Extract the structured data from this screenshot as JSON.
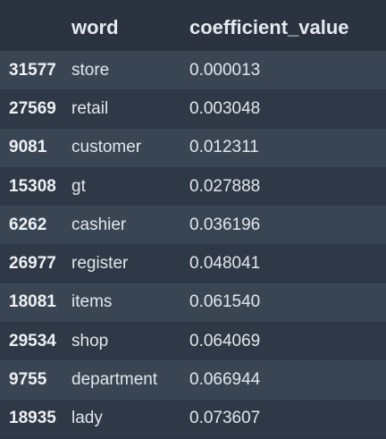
{
  "table": {
    "columns": [
      "",
      "word",
      "coefficient_value"
    ],
    "rows": [
      {
        "index": "31577",
        "word": "store",
        "value": "0.000013"
      },
      {
        "index": "27569",
        "word": "retail",
        "value": "0.003048"
      },
      {
        "index": "9081",
        "word": "customer",
        "value": "0.012311"
      },
      {
        "index": "15308",
        "word": "gt",
        "value": "0.027888"
      },
      {
        "index": "6262",
        "word": "cashier",
        "value": "0.036196"
      },
      {
        "index": "26977",
        "word": "register",
        "value": "0.048041"
      },
      {
        "index": "18081",
        "word": "items",
        "value": "0.061540"
      },
      {
        "index": "29534",
        "word": "shop",
        "value": "0.064069"
      },
      {
        "index": "9755",
        "word": "department",
        "value": "0.066944"
      },
      {
        "index": "18935",
        "word": "lady",
        "value": "0.073607"
      }
    ]
  },
  "colors": {
    "background": "#2b3340",
    "row_odd": "#3a4554",
    "row_even": "#2f3846",
    "text": "#e8ebef"
  }
}
